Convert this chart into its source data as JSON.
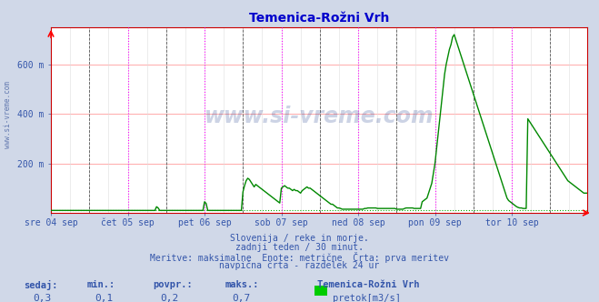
{
  "title": "Temenica-Rožni Vrh",
  "title_color": "#0000cc",
  "bg_color": "#d0d8e8",
  "plot_bg_color": "#ffffff",
  "ylim": [
    0,
    750
  ],
  "yticks": [
    200,
    400,
    600
  ],
  "ytick_labels": [
    "200 m",
    "400 m",
    "600 m"
  ],
  "grid_h_color": "#ffaaaa",
  "line_color": "#008800",
  "axis_color": "#cc0000",
  "watermark_color": "#1a3a8a",
  "text_color": "#3355aa",
  "days": [
    "sre 04 sep",
    "čet 05 sep",
    "pet 06 sep",
    "sob 07 sep",
    "ned 08 sep",
    "pon 09 sep",
    "tor 10 sep"
  ],
  "day_positions": [
    0,
    48,
    96,
    144,
    192,
    240,
    288
  ],
  "n_points": 336,
  "subtitle_lines": [
    "Slovenija / reke in morje.",
    "zadnji teden / 30 minut.",
    "Meritve: maksimalne  Enote: metrične  Črta: prva meritev",
    "navpična črta - razdelek 24 ur"
  ],
  "stats_labels": [
    "sedaj:",
    "min.:",
    "povpr.:",
    "maks.:"
  ],
  "stats_values": [
    "0,3",
    "0,1",
    "0,2",
    "0,7"
  ],
  "legend_station": "Temenica-Rožni Vrh",
  "legend_label": "pretok[m3/s]",
  "legend_color": "#00cc00",
  "magenta_positions": [
    48,
    96,
    144,
    192,
    240,
    288
  ],
  "black_positions": [
    24,
    72,
    120,
    168,
    216,
    264,
    312
  ],
  "flow_data": [
    10,
    10,
    10,
    10,
    10,
    10,
    10,
    10,
    10,
    10,
    10,
    10,
    10,
    10,
    10,
    10,
    10,
    10,
    10,
    10,
    10,
    10,
    10,
    10,
    10,
    10,
    10,
    10,
    10,
    10,
    10,
    10,
    10,
    10,
    10,
    10,
    10,
    10,
    10,
    10,
    10,
    10,
    10,
    10,
    10,
    10,
    10,
    10,
    10,
    10,
    10,
    10,
    10,
    10,
    10,
    10,
    10,
    10,
    10,
    10,
    10,
    10,
    10,
    10,
    10,
    10,
    25,
    20,
    10,
    10,
    10,
    10,
    10,
    10,
    10,
    10,
    10,
    10,
    10,
    10,
    10,
    10,
    10,
    10,
    10,
    10,
    10,
    10,
    10,
    10,
    10,
    10,
    10,
    10,
    10,
    10,
    45,
    38,
    10,
    10,
    10,
    10,
    10,
    10,
    10,
    10,
    10,
    10,
    10,
    10,
    10,
    10,
    10,
    10,
    10,
    10,
    10,
    10,
    10,
    10,
    85,
    110,
    130,
    140,
    135,
    125,
    115,
    105,
    115,
    110,
    105,
    100,
    95,
    90,
    85,
    80,
    75,
    70,
    65,
    60,
    55,
    50,
    45,
    40,
    100,
    105,
    110,
    105,
    100,
    100,
    95,
    90,
    95,
    90,
    90,
    85,
    80,
    90,
    95,
    100,
    105,
    100,
    100,
    95,
    90,
    85,
    80,
    75,
    70,
    65,
    60,
    55,
    50,
    45,
    40,
    35,
    35,
    30,
    25,
    20,
    20,
    18,
    15,
    15,
    15,
    15,
    15,
    15,
    15,
    15,
    15,
    15,
    15,
    15,
    15,
    15,
    18,
    18,
    20,
    20,
    20,
    20,
    20,
    20,
    18,
    18,
    18,
    18,
    18,
    18,
    18,
    18,
    18,
    18,
    18,
    18,
    15,
    15,
    15,
    15,
    15,
    18,
    20,
    20,
    20,
    20,
    20,
    18,
    18,
    18,
    18,
    18,
    45,
    50,
    55,
    60,
    80,
    100,
    120,
    160,
    200,
    260,
    320,
    380,
    440,
    500,
    560,
    600,
    630,
    660,
    680,
    710,
    720,
    700,
    680,
    660,
    640,
    620,
    600,
    580,
    560,
    540,
    520,
    500,
    480,
    460,
    440,
    420,
    400,
    380,
    360,
    340,
    320,
    300,
    280,
    260,
    240,
    220,
    200,
    180,
    160,
    140,
    120,
    100,
    80,
    60,
    50,
    45,
    40,
    35,
    30,
    25,
    22,
    20,
    20,
    18,
    18,
    18,
    380,
    370,
    360,
    350,
    340,
    330,
    320,
    310,
    300,
    290,
    280,
    270,
    260,
    250,
    240,
    230,
    220,
    210,
    200,
    190,
    180,
    170,
    160,
    150,
    140,
    130,
    125,
    120,
    115,
    110,
    105,
    100,
    95,
    90,
    85,
    80
  ]
}
